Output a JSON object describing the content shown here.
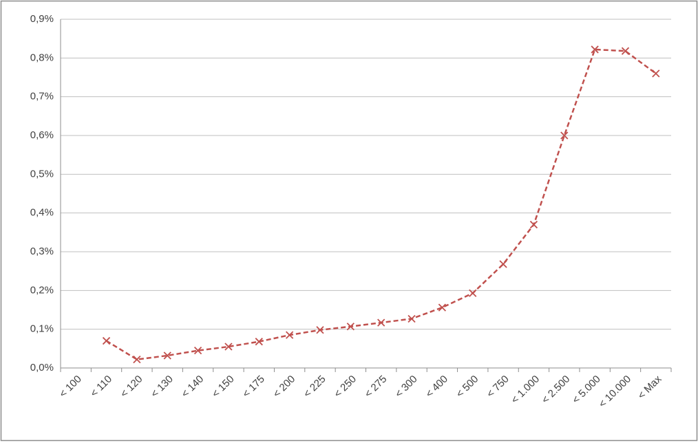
{
  "chart_data": {
    "type": "line",
    "categories": [
      "< 100",
      "< 110",
      "< 120",
      "< 130",
      "< 140",
      "< 150",
      "< 175",
      "< 200",
      "< 225",
      "< 250",
      "< 275",
      "< 300",
      "< 400",
      "< 500",
      "< 750",
      "< 1.000",
      "< 2.500",
      "< 5.000",
      "< 10.000",
      "< Max"
    ],
    "values": [
      null,
      0.07,
      0.022,
      0.032,
      0.045,
      0.055,
      0.068,
      0.085,
      0.098,
      0.107,
      0.117,
      0.127,
      0.156,
      0.193,
      0.268,
      0.37,
      0.6,
      0.822,
      0.818,
      0.76
    ],
    "color": "#c0504d",
    "line_style": "dashed",
    "marker": "x",
    "ylim": [
      0,
      0.9
    ],
    "yticks": [
      {
        "value": 0,
        "label": "0,0%"
      },
      {
        "value": 0.1,
        "label": "0,1%"
      },
      {
        "value": 0.2,
        "label": "0,2%"
      },
      {
        "value": 0.3,
        "label": "0,3%"
      },
      {
        "value": 0.4,
        "label": "0,4%"
      },
      {
        "value": 0.5,
        "label": "0,5%"
      },
      {
        "value": 0.6,
        "label": "0,6%"
      },
      {
        "value": 0.7,
        "label": "0,7%"
      },
      {
        "value": 0.8,
        "label": "0,8%"
      },
      {
        "value": 0.9,
        "label": "0,9%"
      }
    ],
    "grid": true
  }
}
